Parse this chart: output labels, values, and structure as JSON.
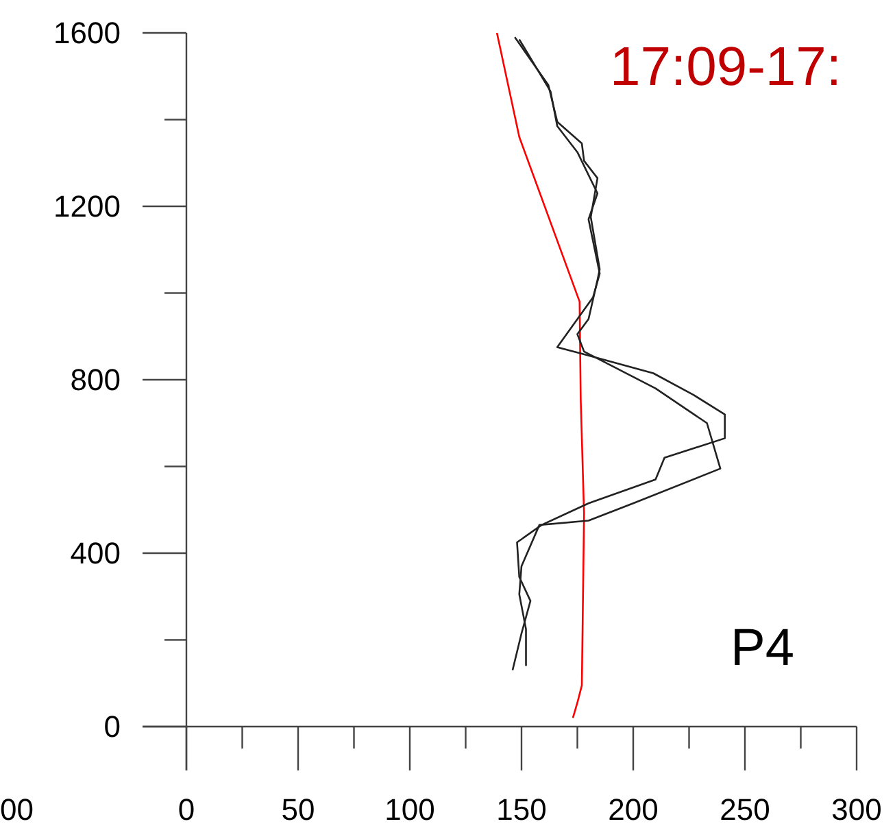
{
  "chart_data": {
    "type": "line",
    "xlim": [
      0,
      300
    ],
    "ylim": [
      0,
      1600
    ],
    "xticks": [
      0,
      {
        "value": 25,
        "label": null
      },
      50,
      {
        "value": 75,
        "label": null
      },
      100,
      {
        "value": 125,
        "label": null
      },
      150,
      {
        "value": 175,
        "label": null
      },
      200,
      {
        "value": 225,
        "label": null
      },
      250,
      {
        "value": 275,
        "label": null
      },
      300
    ],
    "yticks": [
      0,
      {
        "value": 200,
        "label": null
      },
      400,
      {
        "value": 600,
        "label": null
      },
      800,
      {
        "value": 1000,
        "label": null
      },
      1200,
      {
        "value": 1400,
        "label": null
      },
      1600
    ],
    "annotations": [
      "17:09-17:",
      "P4",
      "00"
    ],
    "line_style": "solid",
    "marker": "none",
    "series": [
      {
        "color": "#ff0000",
        "x": [
          139,
          149,
          176,
          176.5,
          178,
          177,
          175,
          173
        ],
        "values": [
          1600,
          1360,
          980,
          755,
          490,
          95,
          55,
          20
        ]
      },
      {
        "color": "#222222",
        "x": [
          147,
          162,
          166,
          177,
          178,
          184,
          181,
          185,
          184,
          180,
          175,
          178,
          210,
          233,
          239,
          200,
          180,
          158,
          150,
          149,
          152,
          152
        ],
        "values": [
          1590,
          1480,
          1395,
          1345,
          1305,
          1265,
          1175,
          1055,
          1030,
          940,
          905,
          865,
          780,
          700,
          595,
          515,
          475,
          465,
          370,
          305,
          225,
          140
        ]
      },
      {
        "color": "#222222",
        "x": [
          149,
          163,
          166,
          175,
          184,
          180,
          185,
          182,
          166,
          177,
          209,
          227,
          241,
          241,
          214,
          210,
          180,
          159,
          148,
          149,
          154,
          150,
          146
        ],
        "values": [
          1585,
          1465,
          1385,
          1325,
          1230,
          1170,
          1045,
          990,
          875,
          860,
          815,
          765,
          720,
          665,
          620,
          570,
          515,
          465,
          425,
          345,
          290,
          215,
          130
        ]
      }
    ]
  }
}
